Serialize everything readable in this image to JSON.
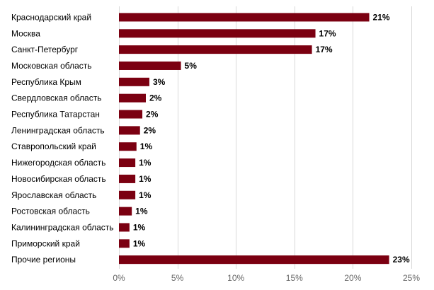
{
  "chart_data": {
    "type": "bar",
    "orientation": "horizontal",
    "categories": [
      "Краснодарский край",
      "Москва",
      "Санкт-Петербург",
      "Московская область",
      "Республика Крым",
      "Свердловская область",
      "Республика Татарстан",
      "Ленинградская область",
      "Ставропольский край",
      "Нижегородская область",
      "Новосибирская область",
      "Ярославская область",
      "Ростовская область",
      "Калининградская область",
      "Приморский край",
      "Прочие регионы"
    ],
    "values": [
      21.4,
      16.8,
      16.5,
      5.3,
      2.6,
      2.3,
      2.0,
      1.8,
      1.5,
      1.4,
      1.4,
      1.4,
      1.1,
      0.9,
      0.9,
      23.1
    ],
    "value_labels": [
      "21%",
      "17%",
      "17%",
      "5%",
      "3%",
      "2%",
      "2%",
      "2%",
      "1%",
      "1%",
      "1%",
      "1%",
      "1%",
      "1%",
      "1%",
      "23%"
    ],
    "xlim": [
      0,
      25
    ],
    "x_ticks": [
      0,
      5,
      10,
      15,
      20,
      25
    ],
    "x_tick_labels": [
      "0%",
      "5%",
      "10%",
      "15%",
      "20%",
      "25%"
    ],
    "title": "",
    "xlabel": "",
    "ylabel": "",
    "grid": true,
    "bar_color": "#7b0011"
  }
}
